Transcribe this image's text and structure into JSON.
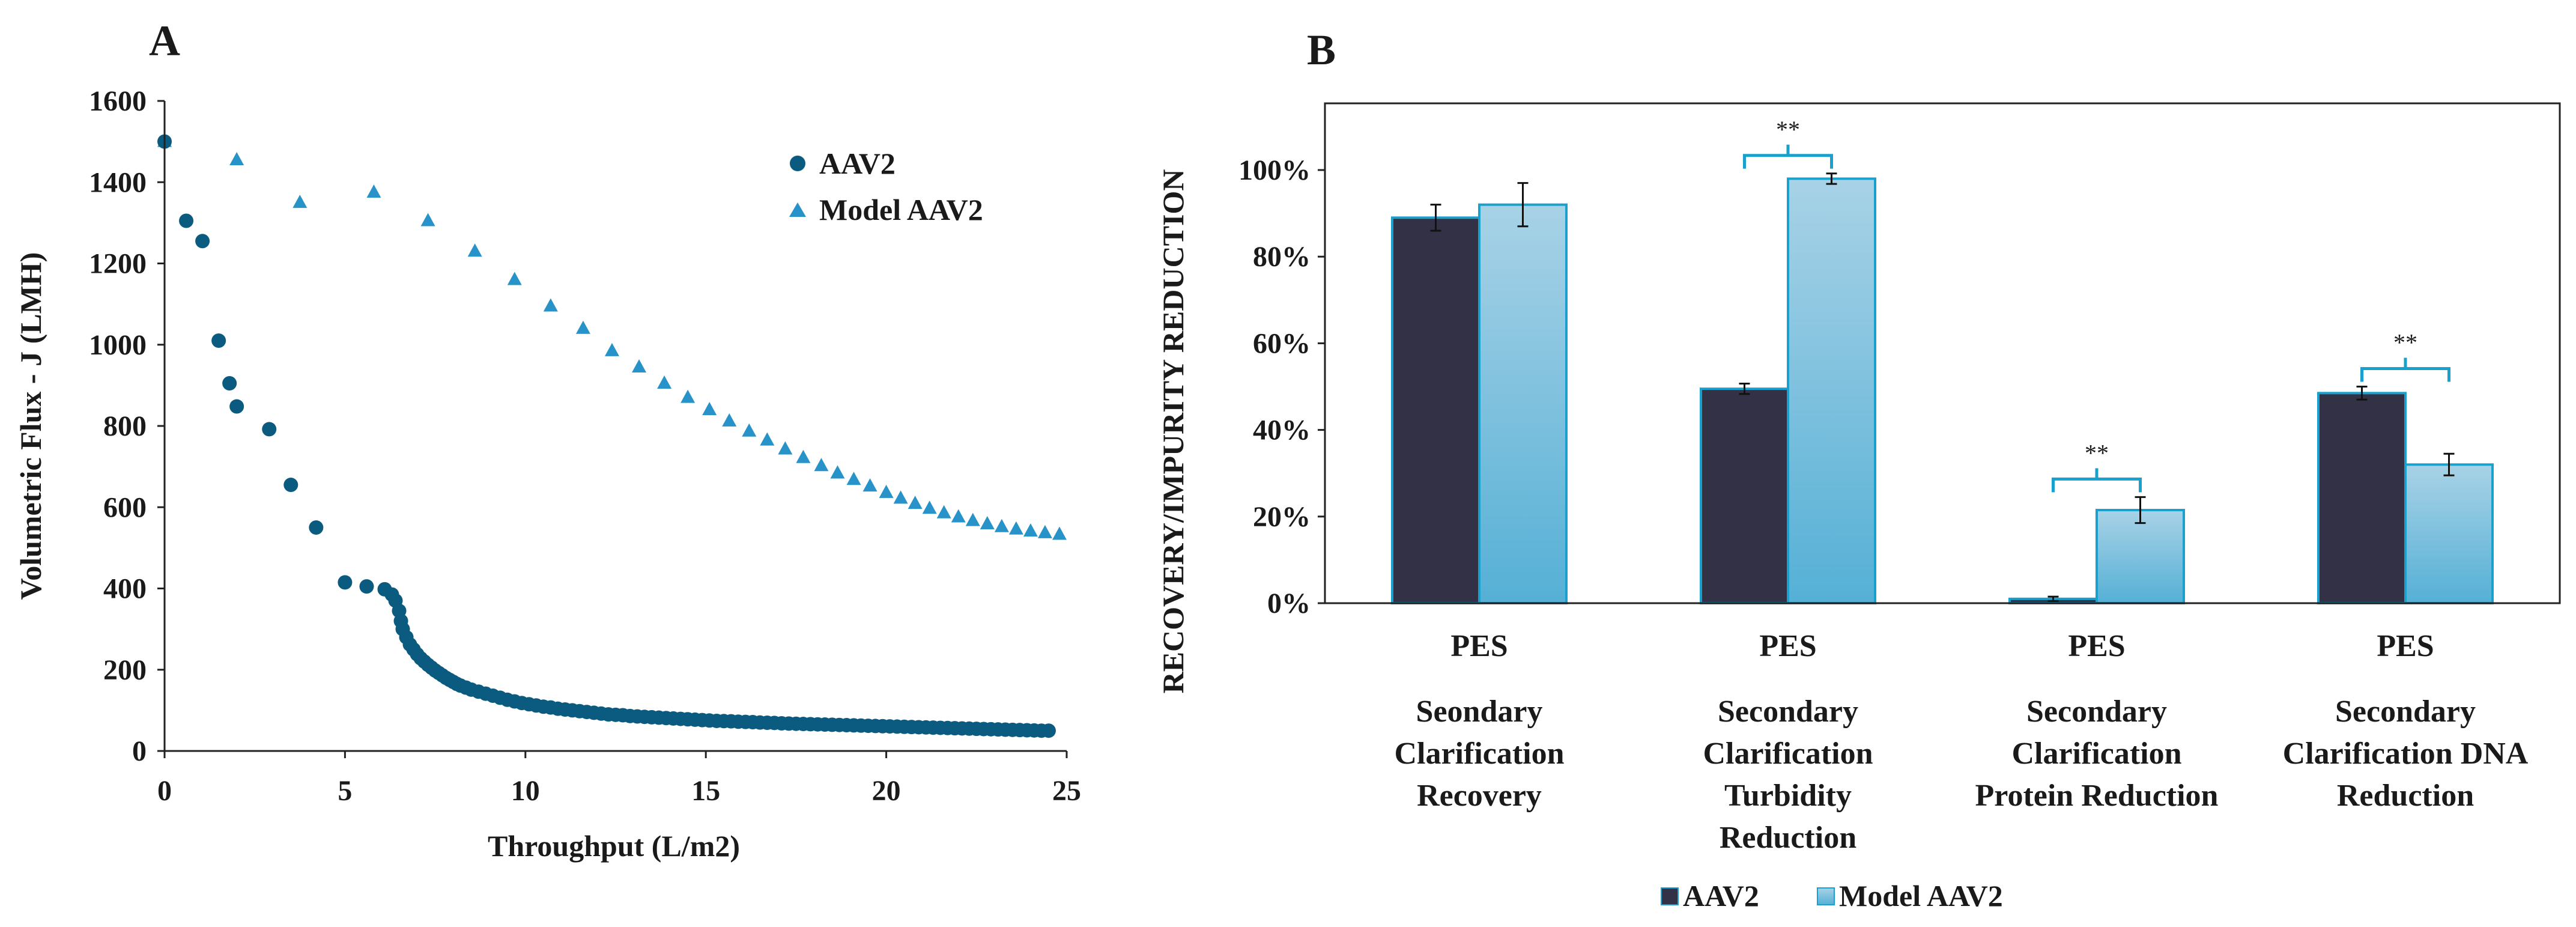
{
  "colors": {
    "aav2_scatter": "#0b5a80",
    "model_scatter": "#2893c8",
    "aav2_bar": "#333145",
    "model_bar_top": "#a8d2e6",
    "model_bar_bottom": "#55b0d6",
    "bar_outline": "#1aa0cc",
    "sig_bracket": "#1aa0cc",
    "axis": "#222222"
  },
  "chart_data": [
    {
      "type": "scatter",
      "panel_label": "A",
      "xlabel": "Throughput  (L/m2)",
      "ylabel": "Volumetric  Flux - J (LMH)",
      "xlim": [
        0,
        25
      ],
      "ylim": [
        0,
        1600
      ],
      "xticks": [
        "0",
        "5",
        "10",
        "15",
        "20",
        "25"
      ],
      "yticks": [
        "0",
        "200",
        "400",
        "600",
        "800",
        "1000",
        "1200",
        "1400",
        "1600"
      ],
      "legend_position": "top-right",
      "series": [
        {
          "name": "AAV2",
          "marker": "circle",
          "points": [
            [
              0,
              1500
            ],
            [
              0.6,
              1305
            ],
            [
              1.05,
              1255
            ],
            [
              1.5,
              1010
            ],
            [
              1.8,
              905
            ],
            [
              2.0,
              848
            ],
            [
              2.9,
              792
            ],
            [
              3.5,
              655
            ],
            [
              4.2,
              550
            ],
            [
              5.0,
              415
            ],
            [
              5.6,
              405
            ],
            [
              6.1,
              398
            ],
            [
              6.3,
              385
            ],
            [
              6.4,
              370
            ],
            [
              6.5,
              345
            ],
            [
              6.55,
              320
            ],
            [
              6.6,
              300
            ],
            [
              6.7,
              280
            ],
            [
              6.8,
              262
            ],
            [
              6.9,
              250
            ],
            [
              7.0,
              238
            ],
            [
              7.1,
              228
            ],
            [
              7.2,
              220
            ],
            [
              7.3,
              212
            ],
            [
              7.4,
              205
            ],
            [
              7.5,
              198
            ],
            [
              7.6,
              192
            ],
            [
              7.7,
              186
            ],
            [
              7.8,
              180
            ],
            [
              7.9,
              175
            ],
            [
              8.0,
              170
            ],
            [
              8.1,
              165
            ],
            [
              8.2,
              161
            ],
            [
              8.35,
              156
            ],
            [
              8.5,
              151
            ],
            [
              8.7,
              146
            ],
            [
              8.9,
              141
            ],
            [
              9.1,
              136
            ],
            [
              9.3,
              131
            ],
            [
              9.5,
              126
            ],
            [
              9.7,
              122
            ],
            [
              9.9,
              118
            ],
            [
              10.1,
              115
            ],
            [
              10.3,
              112
            ],
            [
              10.5,
              109
            ],
            [
              10.7,
              107
            ],
            [
              10.9,
              104
            ],
            [
              11.1,
              102
            ],
            [
              11.3,
              100
            ],
            [
              11.5,
              98
            ],
            [
              11.7,
              96
            ],
            [
              11.9,
              94
            ],
            [
              12.1,
              92
            ],
            [
              12.3,
              90
            ],
            [
              12.5,
              89
            ],
            [
              12.7,
              88
            ],
            [
              12.9,
              86
            ],
            [
              13.1,
              85
            ],
            [
              13.3,
              84
            ],
            [
              13.5,
              83
            ],
            [
              13.7,
              82
            ],
            [
              13.9,
              81
            ],
            [
              14.1,
              80
            ],
            [
              14.3,
              79
            ],
            [
              14.5,
              78
            ],
            [
              14.7,
              77
            ],
            [
              14.9,
              76
            ],
            [
              15.1,
              75
            ],
            [
              15.3,
              74
            ],
            [
              15.5,
              73.5
            ],
            [
              15.7,
              73
            ],
            [
              15.9,
              72
            ],
            [
              16.1,
              71.5
            ],
            [
              16.3,
              71
            ],
            [
              16.5,
              70
            ],
            [
              16.7,
              69.5
            ],
            [
              16.9,
              69
            ],
            [
              17.1,
              68
            ],
            [
              17.3,
              67.5
            ],
            [
              17.5,
              67
            ],
            [
              17.7,
              66.5
            ],
            [
              17.9,
              66
            ],
            [
              18.1,
              65.5
            ],
            [
              18.3,
              65
            ],
            [
              18.5,
              64.5
            ],
            [
              18.7,
              64
            ],
            [
              18.9,
              63.5
            ],
            [
              19.1,
              63
            ],
            [
              19.3,
              62.5
            ],
            [
              19.5,
              62
            ],
            [
              19.7,
              61.5
            ],
            [
              19.9,
              61
            ],
            [
              20.1,
              60.5
            ],
            [
              20.3,
              60
            ],
            [
              20.5,
              59.5
            ],
            [
              20.7,
              59
            ],
            [
              20.9,
              58.5
            ],
            [
              21.1,
              58
            ],
            [
              21.3,
              57.5
            ],
            [
              21.5,
              57
            ],
            [
              21.7,
              56.5
            ],
            [
              21.9,
              56
            ],
            [
              22.1,
              55.5
            ],
            [
              22.3,
              55
            ],
            [
              22.5,
              54.5
            ],
            [
              22.7,
              54
            ],
            [
              22.9,
              53.5
            ],
            [
              23.1,
              53
            ],
            [
              23.3,
              52.5
            ],
            [
              23.5,
              52
            ],
            [
              23.7,
              51.5
            ],
            [
              23.9,
              51
            ],
            [
              24.1,
              50.5
            ],
            [
              24.3,
              50
            ],
            [
              24.5,
              50
            ]
          ]
        },
        {
          "name": "Model AAV2",
          "marker": "triangle",
          "points": [
            [
              0,
              1500
            ],
            [
              2.0,
              1455
            ],
            [
              3.75,
              1350
            ],
            [
              5.8,
              1375
            ],
            [
              7.3,
              1305
            ],
            [
              8.6,
              1230
            ],
            [
              9.7,
              1160
            ],
            [
              10.7,
              1095
            ],
            [
              11.6,
              1040
            ],
            [
              12.4,
              985
            ],
            [
              13.15,
              945
            ],
            [
              13.85,
              905
            ],
            [
              14.5,
              870
            ],
            [
              15.1,
              840
            ],
            [
              15.65,
              812
            ],
            [
              16.2,
              787
            ],
            [
              16.7,
              765
            ],
            [
              17.2,
              743
            ],
            [
              17.7,
              722
            ],
            [
              18.2,
              702
            ],
            [
              18.65,
              684
            ],
            [
              19.1,
              668
            ],
            [
              19.55,
              652
            ],
            [
              20.0,
              636
            ],
            [
              20.4,
              622
            ],
            [
              20.8,
              609
            ],
            [
              21.2,
              597
            ],
            [
              21.6,
              586
            ],
            [
              22.0,
              576
            ],
            [
              22.4,
              567
            ],
            [
              22.8,
              559
            ],
            [
              23.2,
              552
            ],
            [
              23.6,
              546
            ],
            [
              24.0,
              541
            ],
            [
              24.4,
              537
            ],
            [
              24.8,
              533
            ]
          ]
        }
      ]
    },
    {
      "type": "bar",
      "panel_label": "B",
      "ylabel": "RECOVERY/IMPURITY REDUCTION",
      "ylim": [
        0,
        1.15
      ],
      "yticks": [
        "0%",
        "20%",
        "40%",
        "60%",
        "80%",
        "100%"
      ],
      "legend_position": "bottom-center",
      "categories": [
        {
          "group": "PES",
          "lines": [
            "Seondary",
            "Clarification",
            "Recovery"
          ]
        },
        {
          "group": "PES",
          "lines": [
            "Secondary",
            "Clarification",
            "Turbidity",
            "Reduction"
          ]
        },
        {
          "group": "PES",
          "lines": [
            "Secondary",
            "Clarification",
            "Protein Reduction"
          ]
        },
        {
          "group": "PES",
          "lines": [
            "Secondary",
            "Clarification DNA",
            "Reduction"
          ]
        }
      ],
      "series": [
        {
          "name": "AAV2",
          "values": [
            0.89,
            0.495,
            0.01,
            0.485
          ],
          "errors": [
            0.03,
            0.012,
            0.005,
            0.015
          ]
        },
        {
          "name": "Model AAV2",
          "values": [
            0.92,
            0.98,
            0.215,
            0.32
          ],
          "errors": [
            0.05,
            0.012,
            0.03,
            0.025
          ]
        }
      ],
      "significance": [
        {
          "category_index": 1,
          "label": "**"
        },
        {
          "category_index": 2,
          "label": "**"
        },
        {
          "category_index": 3,
          "label": "**"
        }
      ]
    }
  ]
}
